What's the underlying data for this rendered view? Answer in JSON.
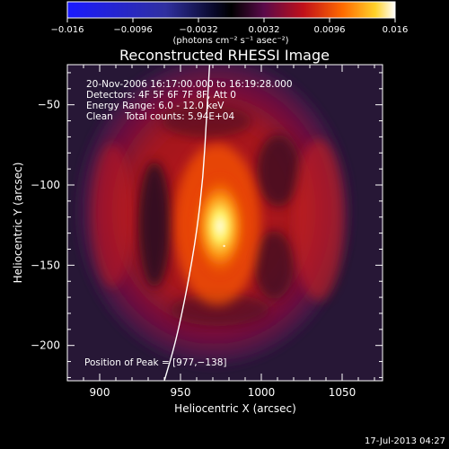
{
  "chart_data": {
    "type": "heatmap",
    "title": "Reconstructed RHESSI Image",
    "xlabel": "Heliocentric X (arcsec)",
    "ylabel": "Heliocentric Y (arcsec)",
    "xlim": [
      880,
      1075
    ],
    "ylim": [
      -222,
      -25
    ],
    "x_ticks": [
      900,
      950,
      1000,
      1050
    ],
    "x_tick_labels": [
      "900",
      "950",
      "1000",
      "1050"
    ],
    "y_ticks": [
      -50,
      -100,
      -150,
      -200
    ],
    "y_tick_labels": [
      "−50",
      "−100",
      "−150",
      "−200"
    ],
    "colorbar": {
      "range": [
        -0.016,
        0.016
      ],
      "ticks": [
        -0.016,
        -0.0096,
        -0.0032,
        0.0032,
        0.0096,
        0.016
      ],
      "tick_labels": [
        "−0.016",
        "−0.0096",
        "−0.0032",
        "0.0032",
        "0.0096",
        "0.016"
      ],
      "units_label": "(photons cm⁻² s⁻¹ asec⁻²)",
      "colormap": "blue-black-red-yellow-white"
    },
    "annotations": [
      "20-Nov-2006 16:17:00.000 to 16:19:28.000",
      "Detectors: 4F 5F 6F 7F 8F, Att 0",
      "Energy Range: 6.0 - 12.0 keV",
      "Clean    Total counts: 5.94E+04"
    ],
    "peak_label": "Position of Peak = [977,−138]",
    "peak": [
      977,
      -138
    ],
    "grid": false,
    "limb_curve_points": [
      [
        968,
        -25
      ],
      [
        966,
        -60
      ],
      [
        964,
        -95
      ],
      [
        960,
        -130
      ],
      [
        954,
        -165
      ],
      [
        947,
        -198
      ],
      [
        940,
        -222
      ]
    ]
  },
  "footer": {
    "date": "17-Jul-2013 04:27"
  },
  "colors": {
    "background": "#000000",
    "text": "#ffffff",
    "limb": "#ffffff"
  }
}
